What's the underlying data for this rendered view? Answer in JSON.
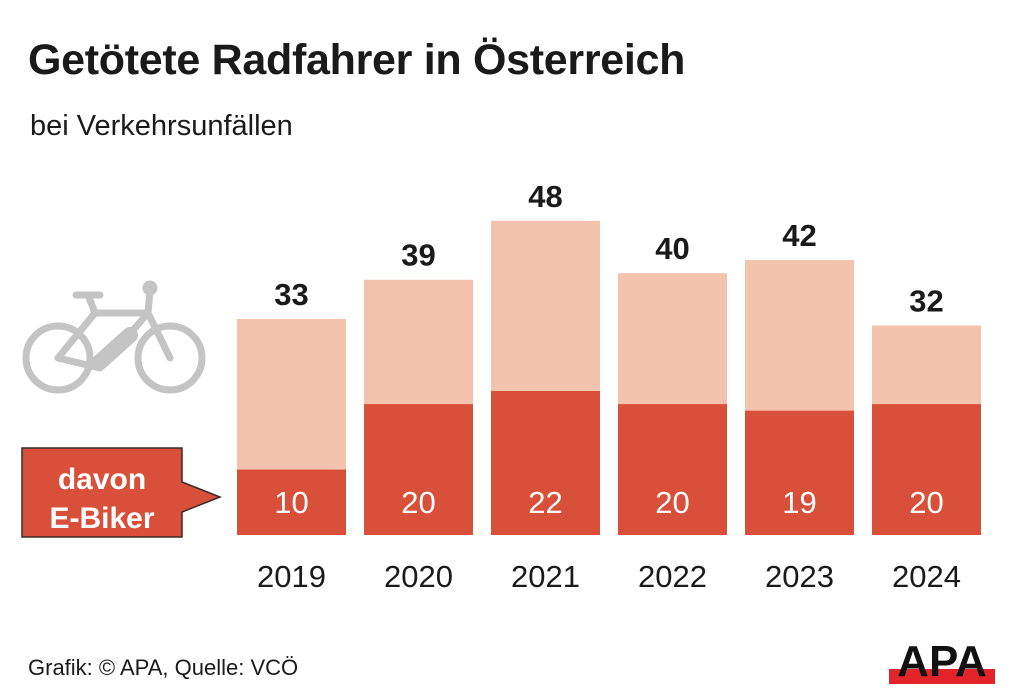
{
  "chart_data": {
    "type": "bar",
    "stacked": true,
    "title": "Getötete Radfahrer in Österreich",
    "subtitle": "bei Verkehrsunfällen",
    "categories": [
      "2019",
      "2020",
      "2021",
      "2022",
      "2023",
      "2024"
    ],
    "totals": [
      33,
      39,
      48,
      40,
      42,
      32
    ],
    "series": [
      {
        "name": "davon E-Biker",
        "values": [
          10,
          20,
          22,
          20,
          19,
          20
        ],
        "color": "#d9503a"
      },
      {
        "values": [
          23,
          19,
          26,
          20,
          23,
          12
        ],
        "color": "#f4c3ad"
      }
    ],
    "callout": "davon E-Biker",
    "callout_lines": [
      "davon",
      "E-Biker"
    ],
    "ylim": [
      0,
      50
    ],
    "grid": false,
    "icon": "e-bike-icon"
  },
  "footer": {
    "source": "Grafik: © APA, Quelle: VCÖ",
    "logo_text": "APA"
  },
  "colors": {
    "ebike": "#d9503a",
    "total": "#f4c3ad",
    "icon": "#c4c4c4",
    "logo_red": "#e3242b"
  }
}
